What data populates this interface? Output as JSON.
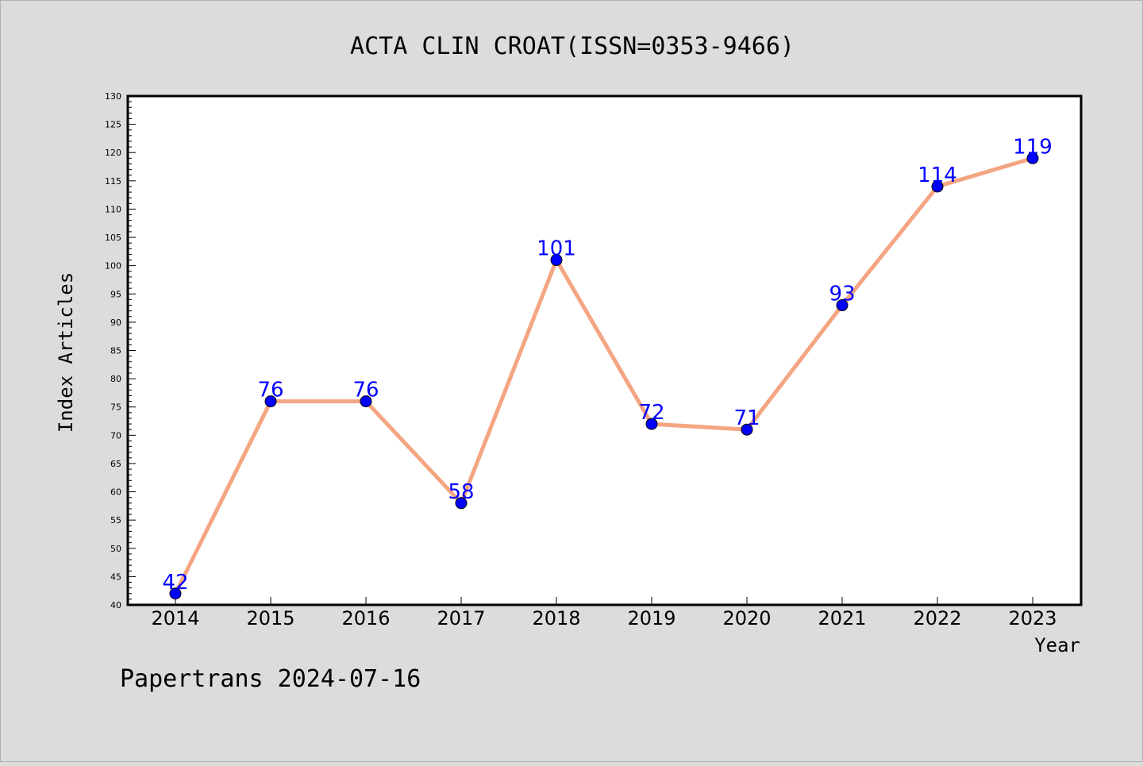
{
  "chart_data": {
    "type": "line",
    "title": "ACTA CLIN CROAT(ISSN=0353-9466)",
    "xlabel": "Year",
    "ylabel": "Index Articles",
    "categories": [
      "2014",
      "2015",
      "2016",
      "2017",
      "2018",
      "2019",
      "2020",
      "2021",
      "2022",
      "2023"
    ],
    "values": [
      42,
      76,
      76,
      58,
      101,
      72,
      71,
      93,
      114,
      119
    ],
    "ylim": [
      40,
      130
    ],
    "ytick_step": 5,
    "grid": false,
    "line_color": "#f4a582",
    "marker_color": "#0000ff",
    "label_color": "#0000ff"
  },
  "footer": "Papertrans 2024-07-16"
}
